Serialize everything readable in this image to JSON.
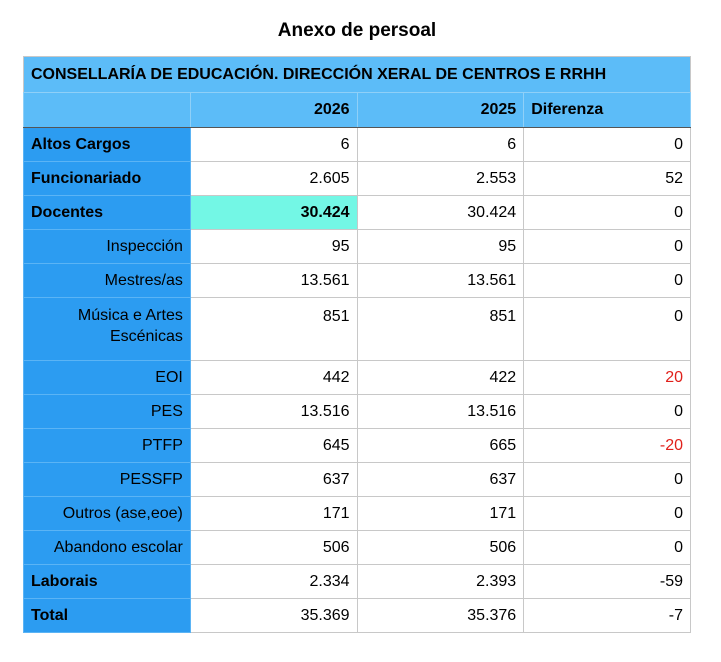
{
  "title": "Anexo de persoal",
  "table_title": "CONSELLARÍA DE EDUCACIÓN. DIRECCIÓN XERAL DE CENTROS E RRHH",
  "headers": [
    "",
    "2026",
    "2025",
    "Diferenza"
  ],
  "rows": [
    {
      "label": "Altos Cargos",
      "v2026": "6",
      "v2025": "6",
      "diff": "0"
    },
    {
      "label": "Funcionariado",
      "v2026": "2.605",
      "v2025": "2.553",
      "diff": "52"
    },
    {
      "label": "Docentes",
      "v2026": "30.424",
      "v2025": "30.424",
      "diff": "0"
    },
    {
      "label": "Inspección",
      "v2026": "95",
      "v2025": "95",
      "diff": "0"
    },
    {
      "label": "Mestres/as",
      "v2026": "13.561",
      "v2025": "13.561",
      "diff": "0"
    },
    {
      "label": "Música e Artes Escénicas",
      "v2026": "851",
      "v2025": "851",
      "diff": "0"
    },
    {
      "label": "EOI",
      "v2026": "442",
      "v2025": "422",
      "diff": "20"
    },
    {
      "label": "PES",
      "v2026": "13.516",
      "v2025": "13.516",
      "diff": "0"
    },
    {
      "label": "PTFP",
      "v2026": "645",
      "v2025": "665",
      "diff": "-20"
    },
    {
      "label": "PESSFP",
      "v2026": "637",
      "v2025": "637",
      "diff": "0"
    },
    {
      "label": "Outros (ase,eoe)",
      "v2026": "171",
      "v2025": "171",
      "diff": "0"
    },
    {
      "label": "Abandono escolar",
      "v2026": "506",
      "v2025": "506",
      "diff": "0"
    },
    {
      "label": "Laborais",
      "v2026": "2.334",
      "v2025": "2.393",
      "diff": "-59"
    },
    {
      "label": "Total",
      "v2026": "35.369",
      "v2025": "35.376",
      "diff": "-7"
    }
  ],
  "colors": {
    "header": "#5cbcf8",
    "label_column": "#2c9cf1",
    "highlight": "#73f7e5",
    "negative_accent": "#e0201a"
  }
}
